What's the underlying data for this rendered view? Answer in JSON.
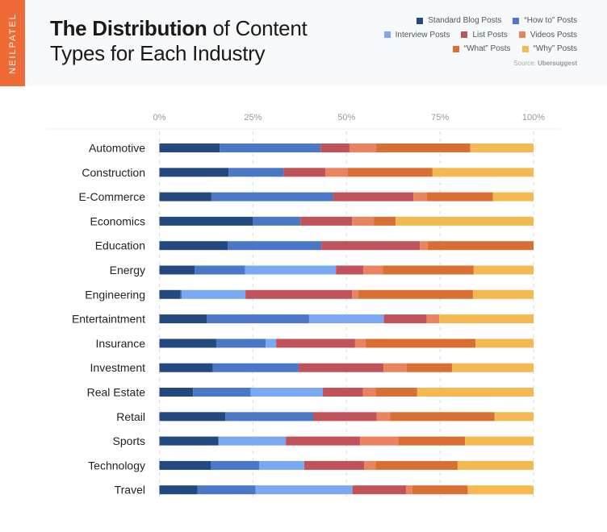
{
  "brand": "NEILPATEL",
  "title_bold": "The Distribution",
  "title_rest": " of Content Types for Each Industry",
  "source_label": "Source:",
  "source_name": "Ubersuggest",
  "chart_data": {
    "type": "bar",
    "orientation": "horizontal",
    "stacked": true,
    "title": "The Distribution of Content Types for Each Industry",
    "xlim": [
      0,
      100
    ],
    "x_ticks": [
      "0%",
      "25%",
      "50%",
      "75%",
      "100%"
    ],
    "grid": true,
    "legend_position": "top-right",
    "categories": [
      "Automotive",
      "Construction",
      "E-Commerce",
      "Economics",
      "Education",
      "Energy",
      "Engineering",
      "Entertaintment",
      "Insurance",
      "Investment",
      "Real Estate",
      "Retail",
      "Sports",
      "Technology",
      "Travel"
    ],
    "series": [
      {
        "name": "Standard Blog Posts",
        "color": "#23497f",
        "values": [
          16.1,
          18.5,
          13.9,
          25.0,
          18.3,
          9.4,
          5.6,
          12.7,
          15.2,
          14.3,
          9.0,
          17.6,
          15.8,
          13.7,
          10.2
        ]
      },
      {
        "name": "“How to” Posts",
        "color": "#4a78c6",
        "values": [
          27.0,
          14.7,
          32.5,
          12.7,
          25.0,
          13.5,
          0.4,
          27.3,
          13.2,
          22.9,
          15.4,
          23.5,
          0,
          13.0,
          15.5
        ]
      },
      {
        "name": "Interview Posts",
        "color": "#7aa9f2",
        "values": [
          0,
          0,
          0,
          0,
          0,
          24.3,
          17.0,
          20.0,
          2.8,
          0,
          19.3,
          0,
          18.0,
          12.0,
          25.9
        ]
      },
      {
        "name": "List Posts",
        "color": "#c0525a",
        "values": [
          7.7,
          11.2,
          21.5,
          13.8,
          26.3,
          7.3,
          28.5,
          11.4,
          21.1,
          22.7,
          10.7,
          17.0,
          19.8,
          16.0,
          14.3
        ]
      },
      {
        "name": "Videos Posts",
        "color": "#ea8460",
        "values": [
          7.1,
          5.9,
          3.6,
          5.8,
          2.1,
          5.2,
          1.7,
          3.4,
          2.8,
          6.2,
          3.4,
          3.6,
          10.2,
          3.1,
          1.7
        ]
      },
      {
        "name": "“What” Posts",
        "color": "#d96f33",
        "values": [
          25.2,
          22.7,
          17.6,
          5.8,
          28.3,
          24.3,
          30.6,
          0,
          29.4,
          12.1,
          11.1,
          27.9,
          17.9,
          21.9,
          14.8
        ]
      },
      {
        "name": "“Why” Posts",
        "color": "#f5b952",
        "values": [
          16.9,
          27.0,
          10.9,
          36.9,
          0,
          16.0,
          16.2,
          25.2,
          15.5,
          21.8,
          31.1,
          10.4,
          18.3,
          20.3,
          17.6
        ]
      }
    ]
  }
}
